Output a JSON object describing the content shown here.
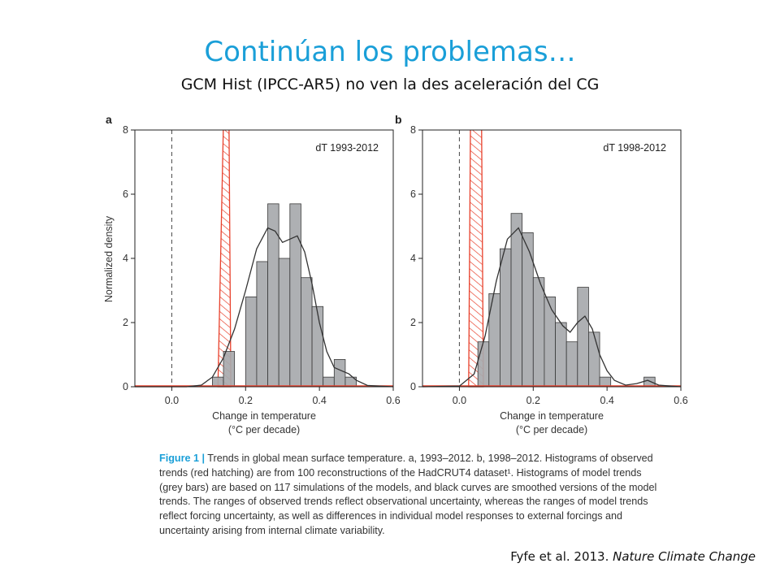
{
  "slide": {
    "title": "Continúan los problemas…",
    "subtitle": "GCM Hist (IPCC-AR5) no ven la des aceleración del CG",
    "citation_prefix": "Fyfe et al. 2013. ",
    "citation_journal": "Nature Climate Change"
  },
  "caption": {
    "label": "Figure 1 |",
    "text": " Trends in global mean surface temperature. a, 1993–2012. b, 1998–2012. Histograms of observed trends (red hatching) are from 100 reconstructions of the HadCRUT4 dataset¹. Histograms of model trends (grey bars) are based on 117 simulations of the models, and black curves are smoothed versions of the model trends. The ranges of observed trends reflect observational uncertainty, whereas the ranges of model trends reflect forcing uncertainty, as well as differences in individual model responses to external forcings and uncertainty arising from internal climate variability."
  },
  "colors": {
    "title": "#1a9fd8",
    "bars": "#a7a9ac",
    "observed": "#e8412c",
    "curve": "#333333"
  },
  "chart_data": [
    {
      "type": "bar",
      "panel": "a",
      "annotation": "dT 1993-2012",
      "xlabel": "Change in temperature",
      "xlabel2": "(°C per decade)",
      "ylabel": "Normalized density",
      "xlim": [
        -0.1,
        0.6
      ],
      "ylim": [
        0,
        8
      ],
      "xticks": [
        "0.0",
        "0.2",
        "0.4",
        "0.6"
      ],
      "xtick_values": [
        0.0,
        0.2,
        0.4,
        0.6
      ],
      "yticks": [
        "0",
        "2",
        "4",
        "6",
        "8"
      ],
      "ytick_values": [
        0,
        2,
        4,
        6,
        8
      ],
      "bin_width": 0.03,
      "bins_start": [
        0.11,
        0.14,
        0.17,
        0.2,
        0.23,
        0.26,
        0.29,
        0.32,
        0.35,
        0.38,
        0.41,
        0.44,
        0.47
      ],
      "model_density": [
        0.3,
        1.1,
        0.0,
        2.8,
        3.9,
        5.7,
        4.0,
        5.7,
        3.4,
        2.5,
        0.3,
        0.85,
        0.3
      ],
      "curve": {
        "x": [
          -0.1,
          0.04,
          0.08,
          0.11,
          0.14,
          0.17,
          0.2,
          0.23,
          0.26,
          0.28,
          0.3,
          0.32,
          0.34,
          0.36,
          0.38,
          0.4,
          0.42,
          0.44,
          0.46,
          0.48,
          0.5,
          0.53,
          0.6
        ],
        "y": [
          0,
          0,
          0.05,
          0.3,
          0.9,
          1.8,
          3.0,
          4.3,
          4.95,
          4.85,
          4.5,
          4.6,
          4.7,
          4.2,
          3.2,
          2.0,
          1.1,
          0.6,
          0.5,
          0.4,
          0.2,
          0.04,
          0
        ]
      },
      "observed": {
        "left": 0.125,
        "right": 0.16,
        "top_left": 0.14,
        "top_right": 0.155
      }
    },
    {
      "type": "bar",
      "panel": "b",
      "annotation": "dT 1998-2012",
      "xlabel": "Change in temperature",
      "xlabel2": "(°C per decade)",
      "xlim": [
        -0.1,
        0.6
      ],
      "ylim": [
        0,
        8
      ],
      "xticks": [
        "0.0",
        "0.2",
        "0.4",
        "0.6"
      ],
      "xtick_values": [
        0.0,
        0.2,
        0.4,
        0.6
      ],
      "yticks": [
        "0",
        "2",
        "4",
        "6",
        "8"
      ],
      "ytick_values": [
        0,
        2,
        4,
        6,
        8
      ],
      "bin_width": 0.03,
      "bins_start": [
        0.05,
        0.08,
        0.11,
        0.14,
        0.17,
        0.2,
        0.23,
        0.26,
        0.29,
        0.32,
        0.35,
        0.38,
        0.41,
        0.44,
        0.47,
        0.5
      ],
      "model_density": [
        1.4,
        2.9,
        4.3,
        5.4,
        4.8,
        3.4,
        2.8,
        2.0,
        1.4,
        3.1,
        1.7,
        0.3,
        0.0,
        0.0,
        0.0,
        0.3
      ],
      "curve": {
        "x": [
          -0.1,
          0.0,
          0.04,
          0.07,
          0.1,
          0.13,
          0.16,
          0.19,
          0.22,
          0.25,
          0.28,
          0.3,
          0.32,
          0.34,
          0.36,
          0.38,
          0.4,
          0.42,
          0.45,
          0.48,
          0.51,
          0.54,
          0.6
        ],
        "y": [
          0,
          0.02,
          0.4,
          1.6,
          3.3,
          4.6,
          4.95,
          4.2,
          3.2,
          2.4,
          1.9,
          1.7,
          2.0,
          2.2,
          1.8,
          1.0,
          0.5,
          0.2,
          0.05,
          0.1,
          0.2,
          0.05,
          0
        ]
      },
      "observed": {
        "left": 0.025,
        "right": 0.065,
        "top_left": 0.03,
        "top_right": 0.06
      }
    }
  ]
}
